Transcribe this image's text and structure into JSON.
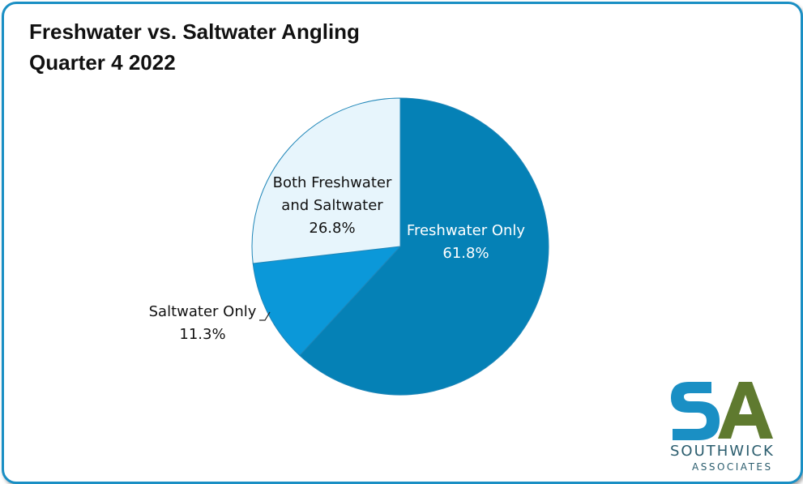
{
  "title_line1": "Freshwater vs. Saltwater Angling",
  "title_line2": "Quarter 4 2022",
  "chart_data": {
    "type": "pie",
    "title": "Freshwater vs. Saltwater Angling Quarter 4 2022",
    "slices": [
      {
        "label_lines": [
          "Freshwater Only"
        ],
        "value": 61.8,
        "value_label": "61.8%",
        "color": "#0581b6",
        "text_color": "#ffffff"
      },
      {
        "label_lines": [
          "Saltwater Only"
        ],
        "value": 11.3,
        "value_label": "11.3%",
        "color": "#0b98d9",
        "text_color": "#111111"
      },
      {
        "label_lines": [
          "Both Freshwater",
          "and Saltwater"
        ],
        "value": 26.8,
        "value_label": "26.8%",
        "color": "#e7f5fc",
        "text_color": "#111111"
      }
    ],
    "start": "12 o'clock",
    "direction": "clockwise"
  },
  "logo": {
    "mark": "SA",
    "name": "SOUTHWICK",
    "subtitle": "ASSOCIATES",
    "colors": {
      "s": "#1a8fc4",
      "a": "#5f7a2f"
    }
  }
}
